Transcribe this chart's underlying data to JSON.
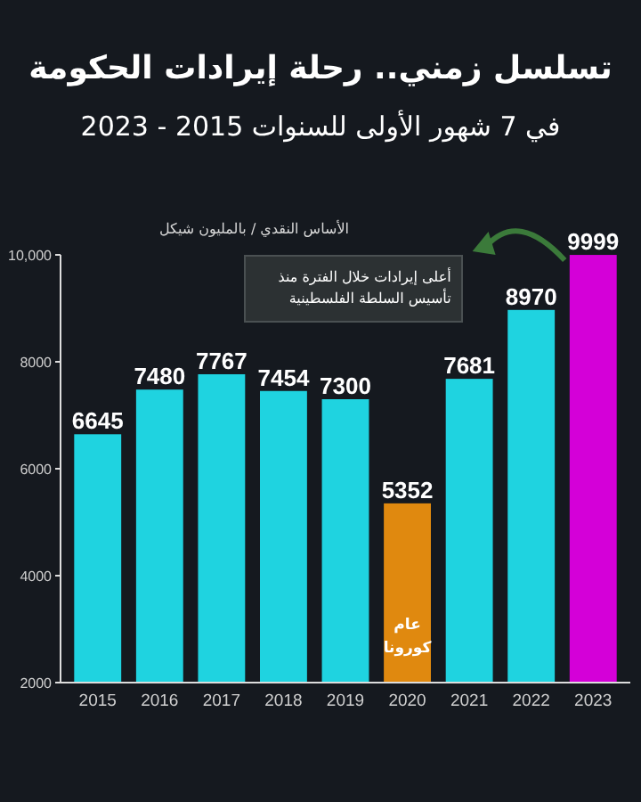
{
  "chart_data": {
    "type": "bar",
    "title": "تسلسل زمني.. رحلة إيرادات الحكومة",
    "subtitle": "في 7 شهور الأولى للسنوات 2015 - 2023",
    "ylabel": "الأساس النقدي / بالمليون شيكل",
    "categories": [
      "2015",
      "2016",
      "2017",
      "2018",
      "2019",
      "2020",
      "2021",
      "2022",
      "2023"
    ],
    "values": [
      6645,
      7480,
      7767,
      7454,
      7300,
      5352,
      7681,
      8970,
      9999
    ],
    "colors": [
      "#1fd3e0",
      "#1fd3e0",
      "#1fd3e0",
      "#1fd3e0",
      "#1fd3e0",
      "#e0890f",
      "#1fd3e0",
      "#1fd3e0",
      "#d400d8"
    ],
    "ylim": [
      2000,
      10000
    ],
    "yticks": [
      2000,
      4000,
      6000,
      8000,
      {
        "value": 10000,
        "label": "10,000"
      }
    ],
    "data_labels": true,
    "annotations": [
      "أعلى إيرادات خلال الفترة منذ تأسيس السلطة الفلسطينية",
      "عام كورونا"
    ]
  }
}
